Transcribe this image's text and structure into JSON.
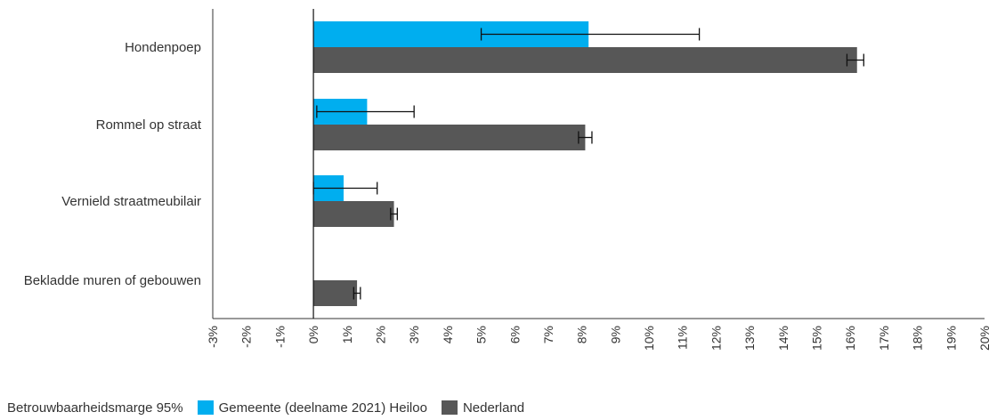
{
  "chart_data": {
    "type": "bar",
    "orientation": "horizontal",
    "categories": [
      "Hondenpoep",
      "Rommel op straat",
      "Vernield straatmeubilair",
      "Bekladde muren of gebouwen"
    ],
    "series": [
      {
        "name": "Gemeente (deelname 2021) Heiloo",
        "color": "#00aeef",
        "values": [
          8.2,
          1.6,
          0.9,
          null
        ],
        "error_low": [
          5.0,
          0.1,
          0.0,
          null
        ],
        "error_high": [
          11.5,
          3.0,
          1.9,
          null
        ]
      },
      {
        "name": "Nederland",
        "color": "#575757",
        "values": [
          16.2,
          8.1,
          2.4,
          1.3
        ],
        "error_low": [
          15.9,
          7.9,
          2.3,
          1.2
        ],
        "error_high": [
          16.4,
          8.3,
          2.5,
          1.4
        ]
      }
    ],
    "xlim": [
      -3,
      20
    ],
    "x_ticks": [
      "-3%",
      "-2%",
      "-1%",
      "0%",
      "1%",
      "2%",
      "3%",
      "4%",
      "5%",
      "6%",
      "7%",
      "8%",
      "9%",
      "10%",
      "11%",
      "12%",
      "13%",
      "14%",
      "15%",
      "16%",
      "17%",
      "18%",
      "19%",
      "20%"
    ],
    "xlabel": "",
    "ylabel": "",
    "title": "",
    "grid": false,
    "legend_position": "bottom-left",
    "legend": {
      "margin_label": "Betrouwbaarheidsmarge 95%"
    }
  }
}
